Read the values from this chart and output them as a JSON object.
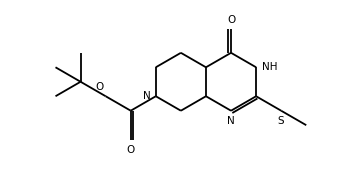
{
  "bg_color": "#ffffff",
  "line_color": "#000000",
  "lw": 1.3,
  "fs": 7.5,
  "fig_w": 3.54,
  "fig_h": 1.78,
  "dpi": 100,
  "xlim": [
    -0.5,
    11.5
  ],
  "ylim": [
    -0.3,
    5.8
  ],
  "bl": 1.0
}
